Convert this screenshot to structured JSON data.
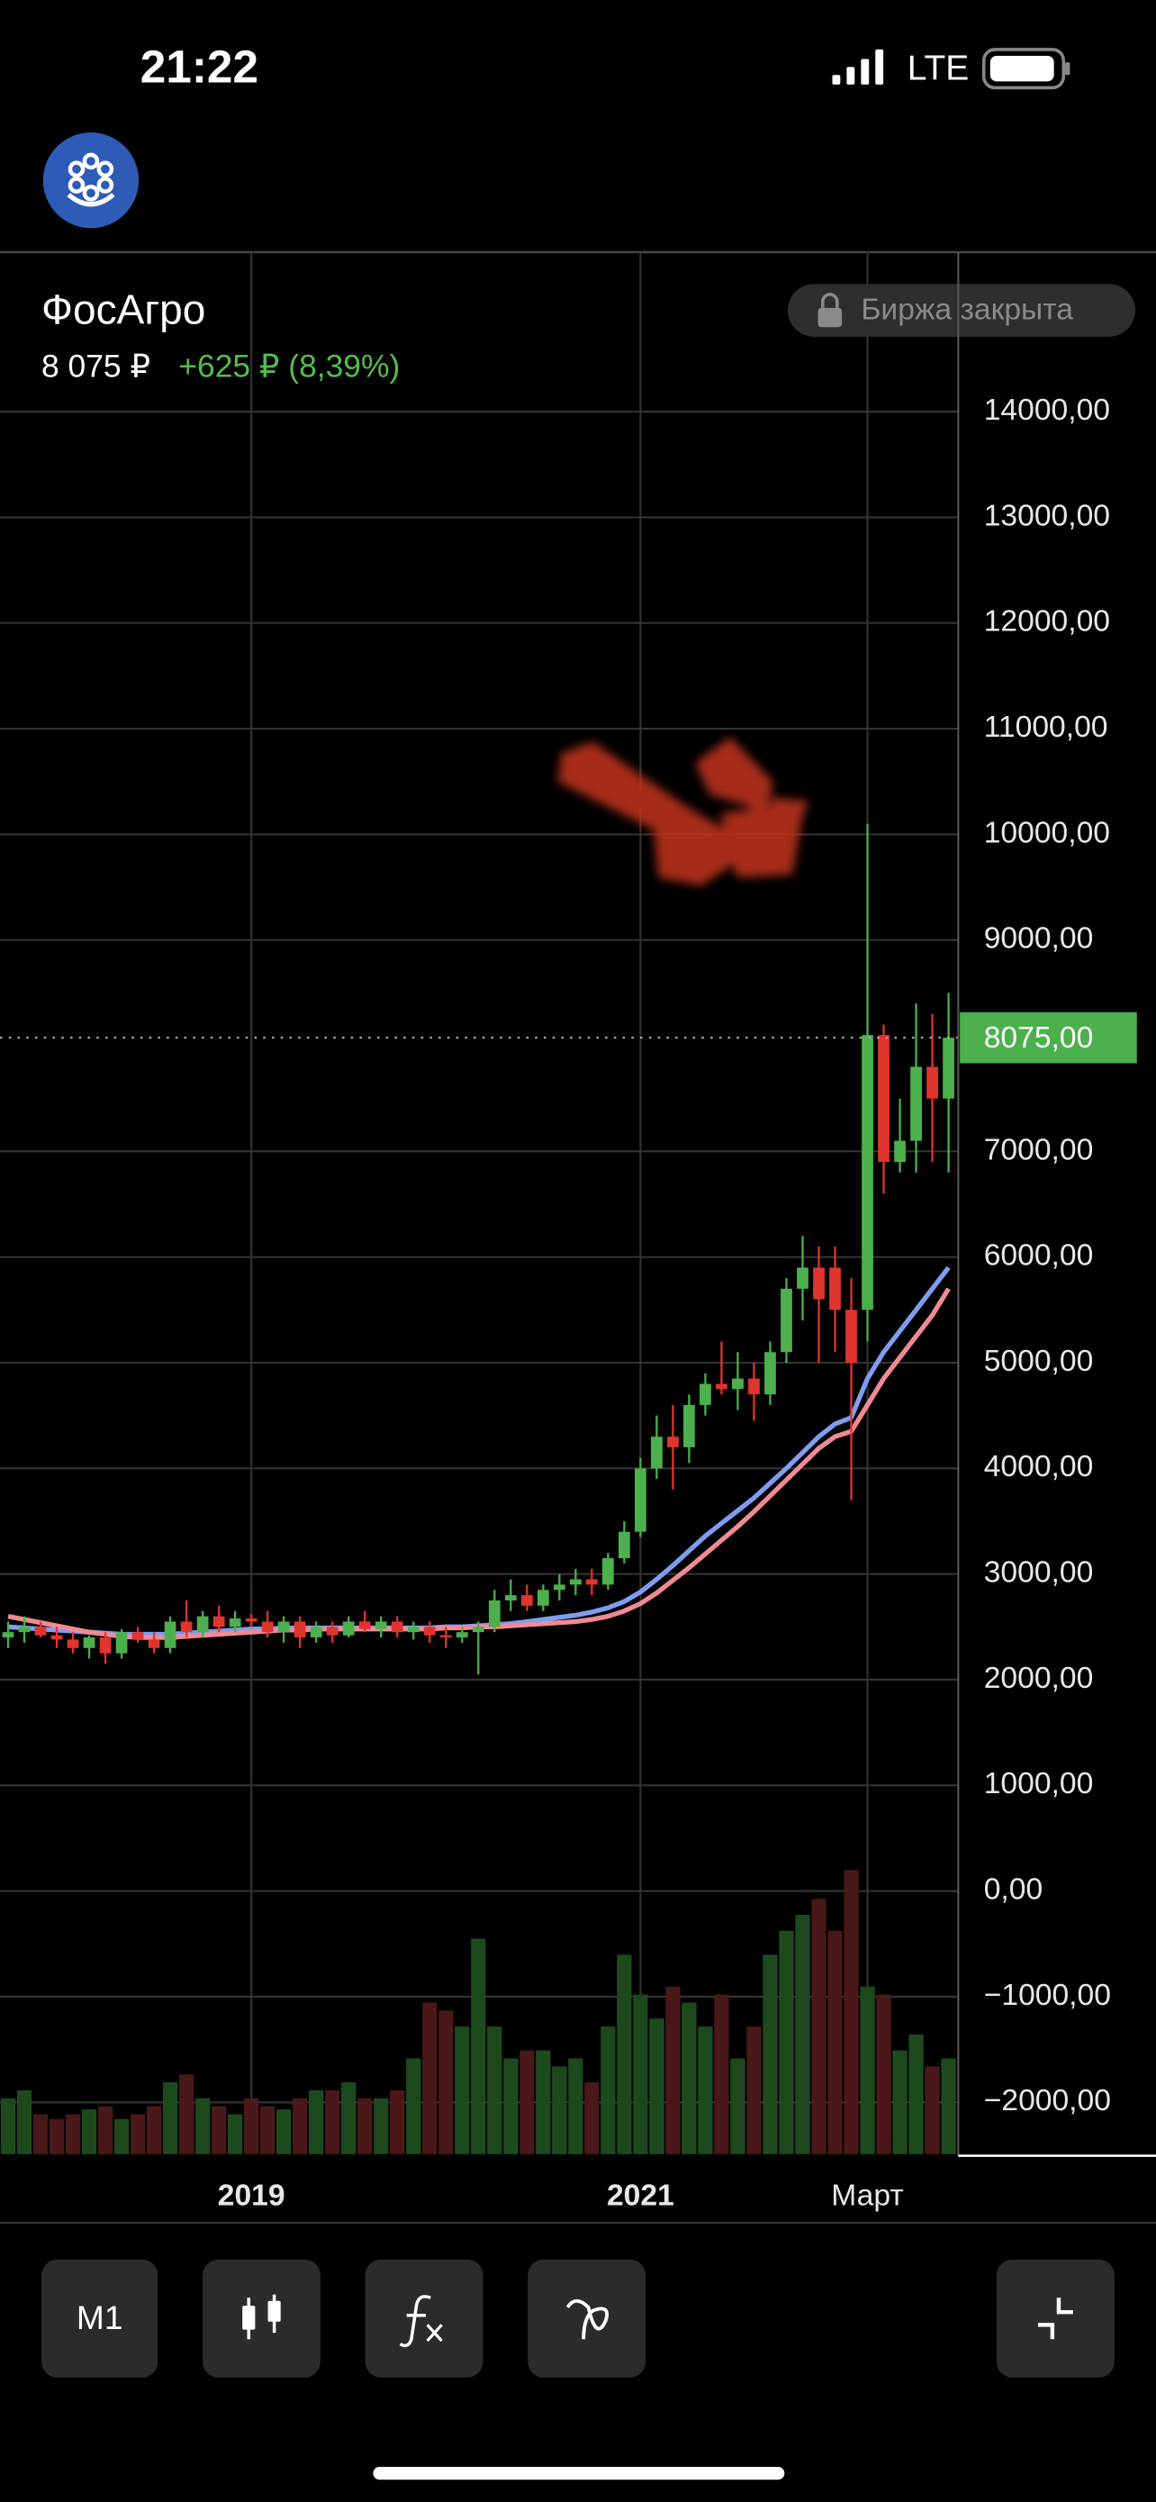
{
  "status_bar": {
    "time": "21:22",
    "network": "LTE"
  },
  "header": {
    "title": "ФосАгро",
    "price": "8 075 ₽",
    "change": "+625 ₽ (8,39%)",
    "badge": "Биржа закрыта"
  },
  "toolbar": {
    "buttons": [
      "M1"
    ]
  },
  "chart_data": {
    "type": "candlestick",
    "up_color": "#4cb04c",
    "down_color": "#e0342f",
    "volume_up_color": "#1d4a1d",
    "volume_down_color": "#4a1818",
    "xlim": [
      -0.5,
      58.6
    ],
    "ylim": [
      -2490,
      15510
    ],
    "xticks": [
      {
        "value": 15,
        "label": "2019"
      },
      {
        "value": 39,
        "label": "2021"
      },
      {
        "value": 53,
        "label": "Март"
      }
    ],
    "yticks": [
      {
        "value": 14000,
        "label": "14000,00"
      },
      {
        "value": 13000,
        "label": "13000,00"
      },
      {
        "value": 12000,
        "label": "12000,00"
      },
      {
        "value": 11000,
        "label": "11000,00"
      },
      {
        "value": 10000,
        "label": "10000,00"
      },
      {
        "value": 9000,
        "label": "9000,00"
      },
      {
        "value": 7000,
        "label": "7000,00"
      },
      {
        "value": 6000,
        "label": "6000,00"
      },
      {
        "value": 5000,
        "label": "5000,00"
      },
      {
        "value": 4000,
        "label": "4000,00"
      },
      {
        "value": 3000,
        "label": "3000,00"
      },
      {
        "value": 2000,
        "label": "2000,00"
      },
      {
        "value": 1000,
        "label": "1000,00"
      },
      {
        "value": 0,
        "label": "0,00"
      },
      {
        "value": -1000,
        "label": "−1000,00"
      },
      {
        "value": -2000,
        "label": "−2000,00"
      }
    ],
    "last_price": {
      "value": 8075,
      "label": "8075,00",
      "color": "#4cb04c"
    },
    "open": [
      2400,
      2450,
      2500,
      2420,
      2380,
      2300,
      2400,
      2250,
      2450,
      2380,
      2300,
      2550,
      2450,
      2600,
      2500,
      2580,
      2550,
      2450,
      2550,
      2400,
      2500,
      2420,
      2550,
      2480,
      2550,
      2450,
      2500,
      2420,
      2400,
      2450,
      2500,
      2750,
      2800,
      2700,
      2850,
      2900,
      2950,
      2900,
      3150,
      3400,
      4000,
      4300,
      4200,
      4600,
      4800,
      4750,
      4850,
      4700,
      5100,
      5700,
      5900,
      5900,
      5500,
      5500,
      8100,
      6900,
      7100,
      7800,
      7500
    ],
    "high": [
      2550,
      2600,
      2550,
      2500,
      2450,
      2420,
      2450,
      2480,
      2500,
      2450,
      2600,
      2750,
      2650,
      2700,
      2650,
      2620,
      2650,
      2600,
      2600,
      2550,
      2550,
      2600,
      2650,
      2600,
      2600,
      2550,
      2550,
      2500,
      2500,
      2550,
      2850,
      2950,
      2900,
      2900,
      3000,
      3050,
      3050,
      3200,
      3500,
      4100,
      4500,
      4600,
      4700,
      4900,
      5200,
      5100,
      5000,
      5200,
      5800,
      6200,
      6100,
      6100,
      5800,
      10100,
      8200,
      7500,
      8400,
      8300,
      8500
    ],
    "low": [
      2300,
      2350,
      2400,
      2300,
      2250,
      2200,
      2150,
      2200,
      2350,
      2250,
      2250,
      2400,
      2400,
      2450,
      2450,
      2500,
      2400,
      2350,
      2300,
      2350,
      2350,
      2400,
      2450,
      2400,
      2400,
      2380,
      2350,
      2300,
      2350,
      2050,
      2450,
      2650,
      2650,
      2650,
      2750,
      2800,
      2800,
      2850,
      3100,
      3350,
      3900,
      3800,
      4050,
      4500,
      4700,
      4550,
      4450,
      4600,
      5000,
      5400,
      5000,
      5100,
      3700,
      5200,
      6600,
      6800,
      6800,
      6900,
      6800
    ],
    "close": [
      2450,
      2500,
      2420,
      2380,
      2300,
      2400,
      2250,
      2450,
      2380,
      2300,
      2550,
      2450,
      2600,
      2500,
      2580,
      2550,
      2450,
      2550,
      2400,
      2500,
      2420,
      2550,
      2480,
      2550,
      2450,
      2500,
      2420,
      2400,
      2450,
      2500,
      2750,
      2800,
      2700,
      2850,
      2900,
      2950,
      2900,
      3150,
      3400,
      4000,
      4300,
      4200,
      4600,
      4800,
      4750,
      4850,
      4700,
      5100,
      5700,
      5900,
      5600,
      5500,
      5000,
      8100,
      6900,
      7100,
      7800,
      7500,
      8075
    ],
    "volumes": [
      35,
      40,
      25,
      22,
      25,
      28,
      30,
      22,
      25,
      30,
      45,
      50,
      35,
      30,
      25,
      35,
      30,
      28,
      35,
      40,
      40,
      45,
      35,
      35,
      40,
      60,
      95,
      90,
      80,
      135,
      80,
      60,
      65,
      65,
      55,
      60,
      45,
      80,
      125,
      100,
      85,
      105,
      95,
      80,
      100,
      60,
      80,
      125,
      140,
      150,
      160,
      140,
      178,
      105,
      100,
      65,
      75,
      55,
      60
    ],
    "moving_averages": [
      {
        "color": "#7f9df0",
        "values": [
          2500,
          2490,
          2480,
          2470,
          2460,
          2450,
          2440,
          2430,
          2430,
          2430,
          2430,
          2440,
          2450,
          2460,
          2470,
          2480,
          2480,
          2490,
          2490,
          2490,
          2490,
          2490,
          2490,
          2490,
          2490,
          2490,
          2490,
          2500,
          2500,
          2510,
          2520,
          2530,
          2550,
          2570,
          2590,
          2610,
          2640,
          2680,
          2740,
          2830,
          2950,
          3080,
          3220,
          3360,
          3480,
          3600,
          3720,
          3860,
          4000,
          4150,
          4300,
          4420,
          4480,
          4850,
          5100,
          5300,
          5500,
          5700,
          5900
        ]
      },
      {
        "color": "#f08a93",
        "values": [
          2600,
          2570,
          2540,
          2510,
          2480,
          2450,
          2430,
          2410,
          2400,
          2400,
          2400,
          2410,
          2420,
          2430,
          2440,
          2450,
          2460,
          2470,
          2470,
          2480,
          2480,
          2480,
          2480,
          2480,
          2480,
          2480,
          2480,
          2490,
          2490,
          2500,
          2500,
          2510,
          2520,
          2530,
          2540,
          2550,
          2570,
          2600,
          2650,
          2720,
          2820,
          2940,
          3060,
          3190,
          3320,
          3450,
          3590,
          3740,
          3890,
          4040,
          4190,
          4300,
          4350,
          4600,
          4850,
          5050,
          5250,
          5450,
          5700
        ]
      }
    ]
  }
}
